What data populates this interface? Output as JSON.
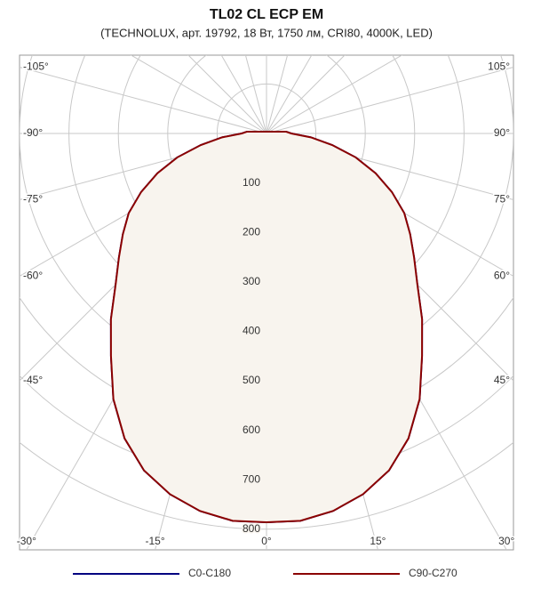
{
  "chart_data": {
    "type": "polar",
    "title": "TL02 CL ECP EM",
    "subtitle": "(TECHNOLUX, арт. 19792, 18 Вт, 1750 лм, CRI80, 4000K, LED)",
    "angles": [
      -95,
      -90,
      -85,
      -80,
      -75,
      -70,
      -65,
      -60,
      -55,
      -50,
      -45,
      -40,
      -35,
      -30,
      -25,
      -20,
      -15,
      -10,
      -5,
      0,
      5,
      10,
      15,
      20,
      25,
      30,
      35,
      40,
      45,
      50,
      55,
      60,
      65,
      70,
      75,
      80,
      85,
      90,
      95
    ],
    "series": [
      {
        "name": "C0-C180",
        "color": "#000080",
        "values": [
          40,
          50,
          90,
          135,
          187,
          235,
          280,
          322,
          355,
          390,
          432,
          490,
          549,
          620,
          680,
          725,
          755,
          775,
          786,
          786,
          786,
          775,
          755,
          725,
          680,
          620,
          549,
          490,
          432,
          390,
          355,
          322,
          280,
          235,
          187,
          135,
          90,
          50,
          40
        ]
      },
      {
        "name": "C90-C270",
        "color": "#8b0000",
        "fill": "#f8f4ee",
        "values": [
          40,
          50,
          90,
          135,
          187,
          235,
          280,
          322,
          355,
          390,
          432,
          490,
          549,
          620,
          680,
          725,
          755,
          775,
          786,
          786,
          786,
          775,
          755,
          725,
          680,
          620,
          549,
          490,
          432,
          390,
          355,
          322,
          280,
          235,
          187,
          135,
          90,
          50,
          40
        ]
      }
    ],
    "rlim": [
      0,
      1000
    ],
    "rticks": [
      100,
      200,
      300,
      400,
      500,
      600,
      700,
      800
    ],
    "angle_ticks": [
      {
        "value": -105,
        "label": "-105°"
      },
      {
        "value": -90,
        "label": "-90°"
      },
      {
        "value": -75,
        "label": "-75°"
      },
      {
        "value": -60,
        "label": "-60°"
      },
      {
        "value": -45,
        "label": "-45°"
      },
      {
        "value": -30,
        "label": "-30°"
      },
      {
        "value": -15,
        "label": "-15°"
      },
      {
        "value": 0,
        "label": "0°"
      },
      {
        "value": 15,
        "label": "15°"
      },
      {
        "value": 30,
        "label": "30°"
      },
      {
        "value": 45,
        "label": "45°"
      },
      {
        "value": 60,
        "label": "60°"
      },
      {
        "value": 75,
        "label": "75°"
      },
      {
        "value": 90,
        "label": "90°"
      },
      {
        "value": 105,
        "label": "105°"
      }
    ],
    "grid": true
  }
}
